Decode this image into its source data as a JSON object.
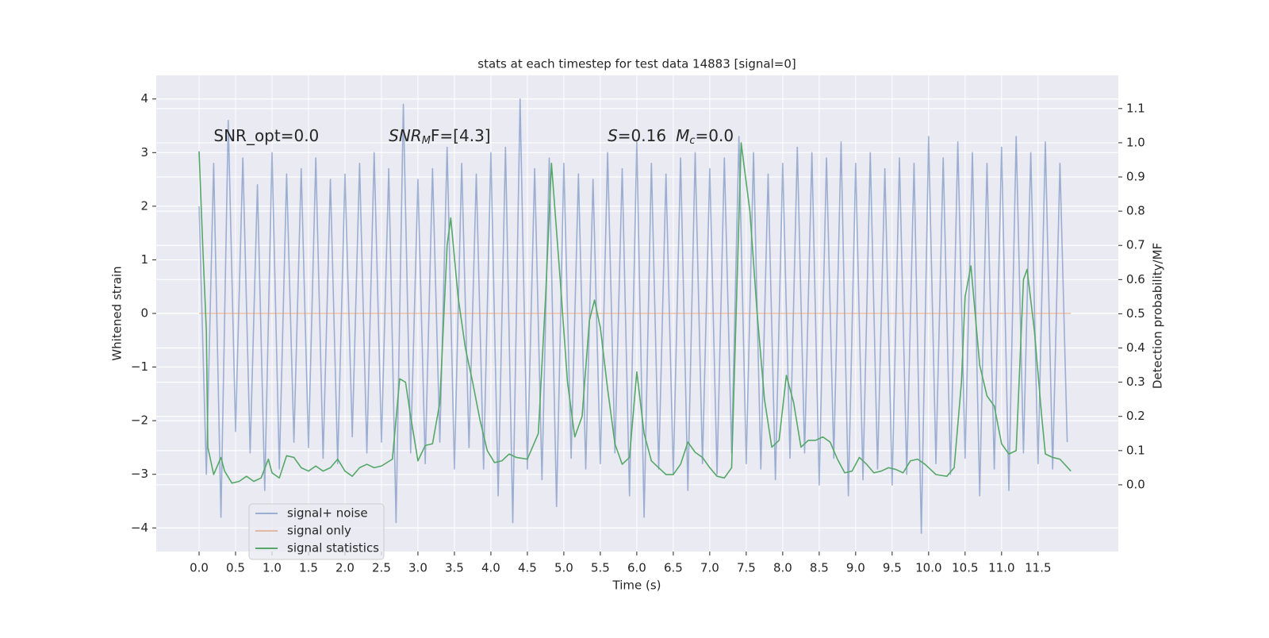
{
  "chart_data": {
    "type": "line",
    "title": "stats at each timestep for test data 14883 [signal=0]",
    "xlabel": "Time (s)",
    "ylabel": "Whitened strain",
    "y2label": "Detection probability/MF",
    "grid": true,
    "legend_loc": "lower left",
    "xlim": [
      -0.587,
      12.6
    ],
    "ylim": [
      -4.44,
      4.44
    ],
    "y2lim": [
      -0.195,
      1.197
    ],
    "xticks": [
      {
        "value": 0,
        "label": "0.0"
      },
      {
        "value": 0.5,
        "label": "0.5"
      },
      {
        "value": 1,
        "label": "1.0"
      },
      {
        "value": 1.5,
        "label": "1.5"
      },
      {
        "value": 2,
        "label": "2.0"
      },
      {
        "value": 2.5,
        "label": "2.5"
      },
      {
        "value": 3,
        "label": "3.0"
      },
      {
        "value": 3.5,
        "label": "3.5"
      },
      {
        "value": 4,
        "label": "4.0"
      },
      {
        "value": 4.5,
        "label": "4.5"
      },
      {
        "value": 5,
        "label": "5.0"
      },
      {
        "value": 5.5,
        "label": "5.5"
      },
      {
        "value": 6,
        "label": "6.0"
      },
      {
        "value": 6.5,
        "label": "6.5"
      },
      {
        "value": 7,
        "label": "7.0"
      },
      {
        "value": 7.5,
        "label": "7.5"
      },
      {
        "value": 8,
        "label": "8.0"
      },
      {
        "value": 8.5,
        "label": "8.5"
      },
      {
        "value": 9,
        "label": "9.0"
      },
      {
        "value": 9.5,
        "label": "9.5"
      },
      {
        "value": 10,
        "label": "10.0"
      },
      {
        "value": 10.5,
        "label": "10.5"
      },
      {
        "value": 11,
        "label": "11.0"
      },
      {
        "value": 11.5,
        "label": "11.5"
      }
    ],
    "yticks": [
      {
        "value": -4,
        "label": "−4"
      },
      {
        "value": -3,
        "label": "−3"
      },
      {
        "value": -2,
        "label": "−2"
      },
      {
        "value": -1,
        "label": "−1"
      },
      0,
      1,
      2,
      3,
      4
    ],
    "y2ticks": [
      {
        "value": 0,
        "label": "0.0"
      },
      {
        "value": 0.1,
        "label": "0.1"
      },
      {
        "value": 0.2,
        "label": "0.2"
      },
      {
        "value": 0.3,
        "label": "0.3"
      },
      {
        "value": 0.4,
        "label": "0.4"
      },
      {
        "value": 0.5,
        "label": "0.5"
      },
      {
        "value": 0.6,
        "label": "0.6"
      },
      {
        "value": 0.7,
        "label": "0.7"
      },
      {
        "value": 0.8,
        "label": "0.8"
      },
      {
        "value": 0.9,
        "label": "0.9"
      },
      {
        "value": 1,
        "label": "1.0"
      },
      {
        "value": 1.1,
        "label": "1.1"
      }
    ],
    "annotations": [
      {
        "parts": [
          "SNR_opt=0.0"
        ],
        "x": 0.2,
        "y": 3.3
      },
      {
        "parts": [
          "SNR",
          "M",
          "F=[4.3]"
        ],
        "x": 2.6,
        "y": 3.3
      },
      {
        "parts": [
          "S",
          "=0.16",
          "M",
          "c",
          "=0.0"
        ],
        "x": 5.6,
        "y": 3.3
      }
    ],
    "series": [
      {
        "name": "signal+ noise",
        "color": "#4c72b0",
        "x": [
          0,
          0.1,
          0.2,
          0.3,
          0.4,
          0.5,
          0.6,
          0.7,
          0.8,
          0.9,
          1,
          1.1,
          1.2,
          1.3,
          1.4,
          1.5,
          1.6,
          1.7,
          1.8,
          1.9,
          2,
          2.1,
          2.2,
          2.3,
          2.4,
          2.5,
          2.6,
          2.7,
          2.8,
          2.9,
          3,
          3.1,
          3.2,
          3.3,
          3.4,
          3.5,
          3.6,
          3.7,
          3.8,
          3.9,
          4,
          4.1,
          4.2,
          4.3,
          4.4,
          4.5,
          4.6,
          4.7,
          4.8,
          4.9,
          5,
          5.1,
          5.2,
          5.3,
          5.4,
          5.5,
          5.6,
          5.7,
          5.8,
          5.9,
          6,
          6.1,
          6.2,
          6.3,
          6.4,
          6.5,
          6.6,
          6.7,
          6.8,
          6.9,
          7,
          7.1,
          7.2,
          7.3,
          7.4,
          7.5,
          7.6,
          7.7,
          7.8,
          7.9,
          8,
          8.1,
          8.2,
          8.3,
          8.4,
          8.5,
          8.6,
          8.7,
          8.8,
          8.9,
          9,
          9.1,
          9.2,
          9.3,
          9.4,
          9.5,
          9.6,
          9.7,
          9.8,
          9.9,
          10,
          10.1,
          10.2,
          10.3,
          10.4,
          10.5,
          10.6,
          10.7,
          10.8,
          10.9,
          11,
          11.1,
          11.2,
          11.3,
          11.4,
          11.5,
          11.6,
          11.7,
          11.8,
          11.9
        ],
        "values": [
          2.0,
          -3.0,
          2.8,
          -3.8,
          3.6,
          -2.2,
          2.9,
          -2.6,
          2.4,
          -3.3,
          3.0,
          -2.9,
          2.6,
          -2.4,
          2.7,
          -2.5,
          2.9,
          -2.7,
          2.5,
          -2.8,
          2.6,
          -2.3,
          2.8,
          -2.6,
          3.0,
          -2.4,
          2.7,
          -3.9,
          3.9,
          -2.6,
          2.5,
          -2.8,
          2.7,
          -2.4,
          3.1,
          -2.9,
          2.8,
          -2.5,
          2.6,
          -2.9,
          3.0,
          -3.4,
          3.1,
          -3.9,
          4.0,
          -2.9,
          2.7,
          -3.1,
          2.9,
          -3.6,
          2.8,
          -2.7,
          2.6,
          -2.9,
          2.5,
          -2.8,
          3.0,
          -2.6,
          2.7,
          -3.4,
          3.2,
          -3.8,
          2.8,
          -2.9,
          2.6,
          -3.0,
          2.9,
          -3.3,
          3.0,
          -2.8,
          2.7,
          -3.0,
          2.9,
          -2.6,
          3.3,
          -2.8,
          3.0,
          -2.9,
          2.6,
          -3.1,
          2.8,
          -2.7,
          3.1,
          -2.6,
          3.0,
          -3.2,
          2.9,
          -2.7,
          3.2,
          -3.4,
          2.8,
          -3.1,
          3.0,
          -2.9,
          2.7,
          -3.2,
          2.9,
          -3.0,
          2.8,
          -4.1,
          3.3,
          -2.8,
          2.9,
          -3.0,
          3.2,
          -2.7,
          3.0,
          -3.4,
          2.8,
          -2.9,
          3.1,
          -3.3,
          3.3,
          -2.6,
          3.0,
          -2.8,
          3.2,
          -2.9,
          2.8,
          -2.4
        ],
        "opacity": 0.5
      },
      {
        "name": "signal only",
        "color": "#dd8452",
        "x": [
          0,
          11.95
        ],
        "values": [
          0,
          0
        ],
        "opacity": 0.5
      },
      {
        "name": "signal statistics",
        "color": "#55a868",
        "axis": "y2",
        "x": [
          0,
          0.05,
          0.1,
          0.12,
          0.2,
          0.3,
          0.35,
          0.45,
          0.55,
          0.65,
          0.75,
          0.85,
          0.95,
          1.0,
          1.1,
          1.2,
          1.3,
          1.4,
          1.5,
          1.6,
          1.7,
          1.8,
          1.9,
          2.0,
          2.1,
          2.2,
          2.3,
          2.4,
          2.5,
          2.65,
          2.75,
          2.83,
          2.9,
          3.0,
          3.1,
          3.2,
          3.3,
          3.4,
          3.45,
          3.55,
          3.65,
          3.75,
          3.85,
          3.95,
          4.05,
          4.15,
          4.25,
          4.35,
          4.5,
          4.65,
          4.75,
          4.83,
          4.95,
          5.05,
          5.15,
          5.25,
          5.35,
          5.42,
          5.5,
          5.6,
          5.7,
          5.8,
          5.9,
          6.0,
          6.1,
          6.2,
          6.3,
          6.4,
          6.5,
          6.6,
          6.7,
          6.8,
          6.9,
          7.0,
          7.1,
          7.2,
          7.3,
          7.43,
          7.55,
          7.65,
          7.75,
          7.85,
          7.95,
          8.05,
          8.15,
          8.25,
          8.35,
          8.45,
          8.55,
          8.65,
          8.75,
          8.85,
          8.95,
          9.05,
          9.15,
          9.25,
          9.35,
          9.45,
          9.55,
          9.65,
          9.75,
          9.85,
          9.95,
          10.1,
          10.25,
          10.35,
          10.45,
          10.5,
          10.58,
          10.7,
          10.8,
          10.9,
          11.0,
          11.1,
          11.2,
          11.3,
          11.35,
          11.45,
          11.55,
          11.6,
          11.7,
          11.8,
          11.95
        ],
        "values": [
          0.975,
          0.7,
          0.45,
          0.11,
          0.03,
          0.08,
          0.04,
          0.005,
          0.01,
          0.025,
          0.01,
          0.02,
          0.075,
          0.035,
          0.02,
          0.085,
          0.08,
          0.05,
          0.04,
          0.055,
          0.04,
          0.05,
          0.075,
          0.04,
          0.025,
          0.05,
          0.06,
          0.05,
          0.055,
          0.075,
          0.31,
          0.3,
          0.2,
          0.07,
          0.115,
          0.12,
          0.24,
          0.7,
          0.78,
          0.55,
          0.4,
          0.3,
          0.19,
          0.1,
          0.065,
          0.07,
          0.09,
          0.08,
          0.075,
          0.15,
          0.55,
          0.94,
          0.6,
          0.3,
          0.14,
          0.2,
          0.48,
          0.54,
          0.46,
          0.28,
          0.12,
          0.06,
          0.08,
          0.33,
          0.15,
          0.07,
          0.05,
          0.03,
          0.03,
          0.06,
          0.125,
          0.095,
          0.08,
          0.05,
          0.025,
          0.02,
          0.05,
          1.0,
          0.8,
          0.5,
          0.25,
          0.11,
          0.13,
          0.32,
          0.24,
          0.11,
          0.13,
          0.13,
          0.14,
          0.125,
          0.075,
          0.035,
          0.04,
          0.08,
          0.06,
          0.035,
          0.04,
          0.05,
          0.045,
          0.035,
          0.07,
          0.075,
          0.06,
          0.03,
          0.025,
          0.05,
          0.3,
          0.55,
          0.64,
          0.35,
          0.26,
          0.23,
          0.12,
          0.09,
          0.1,
          0.6,
          0.63,
          0.45,
          0.2,
          0.09,
          0.08,
          0.075,
          0.04
        ],
        "opacity": 1
      }
    ]
  }
}
